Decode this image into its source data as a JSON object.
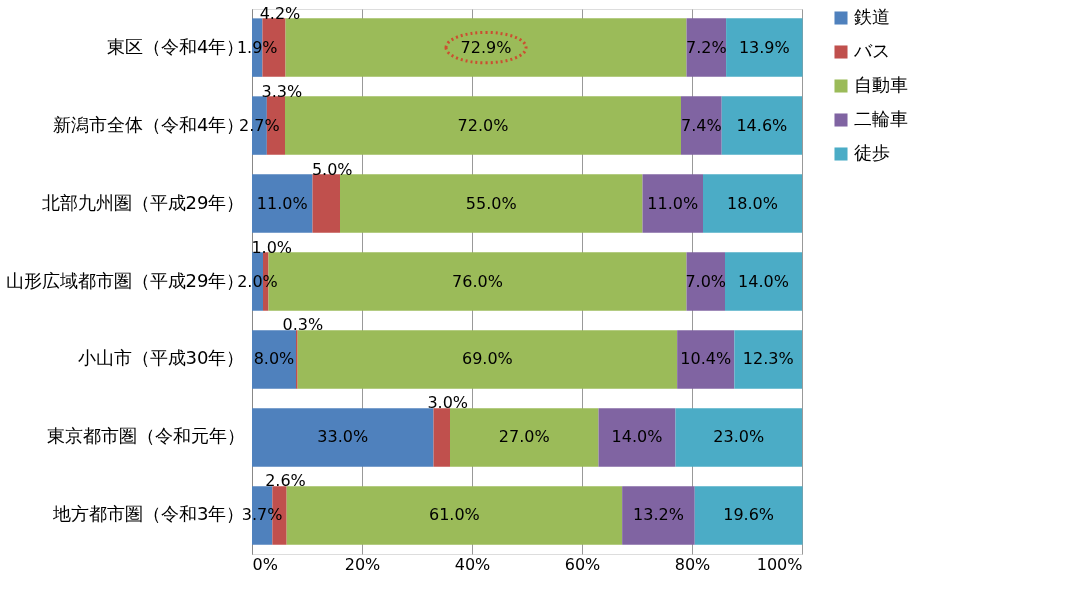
{
  "chart_data": {
    "type": "bar",
    "orientation": "horizontal",
    "stacked": true,
    "grid": "x",
    "legend": "right",
    "categories": [
      "東区（令和4年）",
      "新潟市全体（令和4年）",
      "北部九州圏（平成29年）",
      "山形広域都市圏（平成29年）",
      "小山市（平成30年）",
      "東京都市圏（令和元年）",
      "地方都市圏（令和3年）"
    ],
    "series": [
      {
        "name": "鉄道",
        "color": "#4f81bd",
        "values": [
          1.9,
          2.7,
          11.0,
          2.0,
          8.0,
          33.0,
          3.7
        ],
        "value_labels": [
          "1.9%",
          "2.7%",
          "11.0%",
          "2.0%",
          "8.0%",
          "33.0%",
          "3.7%"
        ]
      },
      {
        "name": "バス",
        "color": "#c0504d",
        "values": [
          4.2,
          3.3,
          5.0,
          1.0,
          0.3,
          3.0,
          2.6
        ],
        "value_labels": [
          "4.2%",
          "3.3%",
          "5.0%",
          "1.0%",
          "0.3%",
          "3.0%",
          "2.6%"
        ]
      },
      {
        "name": "自動車",
        "color": "#9bbb59",
        "values": [
          72.9,
          72.0,
          55.0,
          76.0,
          69.0,
          27.0,
          61.0
        ],
        "value_labels": [
          "72.9%",
          "72.0%",
          "55.0%",
          "76.0%",
          "69.0%",
          "27.0%",
          "61.0%"
        ]
      },
      {
        "name": "二輪車",
        "color": "#8064a2",
        "values": [
          7.2,
          7.4,
          11.0,
          7.0,
          10.4,
          14.0,
          13.2
        ],
        "value_labels": [
          "7.2%",
          "7.4%",
          "11.0%",
          "7.0%",
          "10.4%",
          "14.0%",
          "13.2%"
        ]
      },
      {
        "name": "徒歩",
        "color": "#4bacc6",
        "values": [
          13.9,
          14.6,
          18.0,
          14.0,
          12.3,
          23.0,
          19.6
        ],
        "value_labels": [
          "13.9%",
          "14.6%",
          "18.0%",
          "14.0%",
          "12.3%",
          "23.0%",
          "19.6%"
        ]
      }
    ],
    "xlim": [
      0,
      100
    ],
    "xticks": [
      {
        "value": 0,
        "label": "0%"
      },
      {
        "value": 20,
        "label": "20%"
      },
      {
        "value": 40,
        "label": "40%"
      },
      {
        "value": 60,
        "label": "60%"
      },
      {
        "value": 80,
        "label": "80%"
      },
      {
        "value": 100,
        "label": "100%"
      }
    ]
  }
}
